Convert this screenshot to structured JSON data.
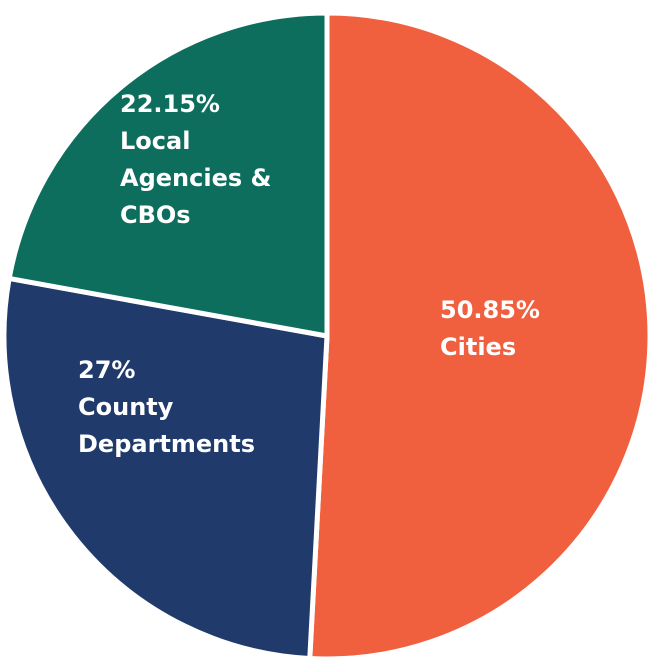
{
  "chart_data": {
    "type": "pie",
    "categories": [
      "Cities",
      "County Departments",
      "Local Agencies & CBOs"
    ],
    "values": [
      50.85,
      27,
      22.15
    ],
    "value_labels": [
      "50.85%",
      "27%",
      "22.15%"
    ],
    "colors": [
      "#f0603f",
      "#1f3a6b",
      "#0e6e5e"
    ]
  }
}
